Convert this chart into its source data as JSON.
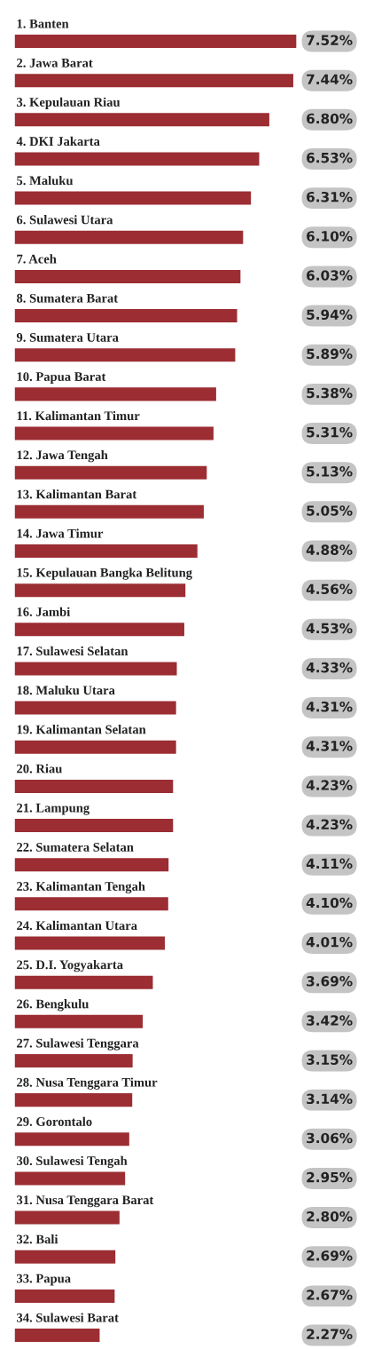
{
  "chart_data": {
    "type": "bar",
    "orientation": "horizontal",
    "data_labels": true,
    "color": "#9b2d33",
    "categories": [
      "1. Banten",
      "2. Jawa Barat",
      "3. Kepulauan Riau",
      "4. DKI Jakarta",
      "5. Maluku",
      "6. Sulawesi Utara",
      "7. Aceh",
      "8. Sumatera Barat",
      "9. Sumatera Utara",
      "10. Papua Barat",
      "11. Kalimantan Timur",
      "12. Jawa Tengah",
      "13. Kalimantan Barat",
      "14. Jawa Timur",
      "15. Kepulauan Bangka Belitung",
      "16. Jambi",
      "17. Sulawesi Selatan",
      "18. Maluku Utara",
      "19. Kalimantan Selatan",
      "20. Riau",
      "21. Lampung",
      "22. Sumatera Selatan",
      "23. Kalimantan Tengah",
      "24. Kalimantan Utara",
      "25. D.I. Yogyakarta",
      "26. Bengkulu",
      "27. Sulawesi Tenggara",
      "28. Nusa Tenggara Timur",
      "29. Gorontalo",
      "30. Sulawesi Tengah",
      "31. Nusa Tenggara Barat",
      "32. Bali",
      "33. Papua",
      "34. Sulawesi Barat"
    ],
    "values": [
      7.52,
      7.44,
      6.8,
      6.53,
      6.31,
      6.1,
      6.03,
      5.94,
      5.89,
      5.38,
      5.31,
      5.13,
      5.05,
      4.88,
      4.56,
      4.53,
      4.33,
      4.31,
      4.31,
      4.23,
      4.23,
      4.11,
      4.1,
      4.01,
      3.69,
      3.42,
      3.15,
      3.14,
      3.06,
      2.95,
      2.8,
      2.69,
      2.67,
      2.27
    ],
    "value_labels": [
      "7.52%",
      "7.44%",
      "6.80%",
      "6.53%",
      "6.31%",
      "6.10%",
      "6.03%",
      "5.94%",
      "5.89%",
      "5.38%",
      "5.31%",
      "5.13%",
      "5.05%",
      "4.88%",
      "4.56%",
      "4.53%",
      "4.33%",
      "4.31%",
      "4.31%",
      "4.23%",
      "4.23%",
      "4.11%",
      "4.10%",
      "4.01%",
      "3.69%",
      "3.42%",
      "3.15%",
      "3.14%",
      "3.06%",
      "2.95%",
      "2.80%",
      "2.69%",
      "2.67%",
      "2.27%"
    ]
  }
}
